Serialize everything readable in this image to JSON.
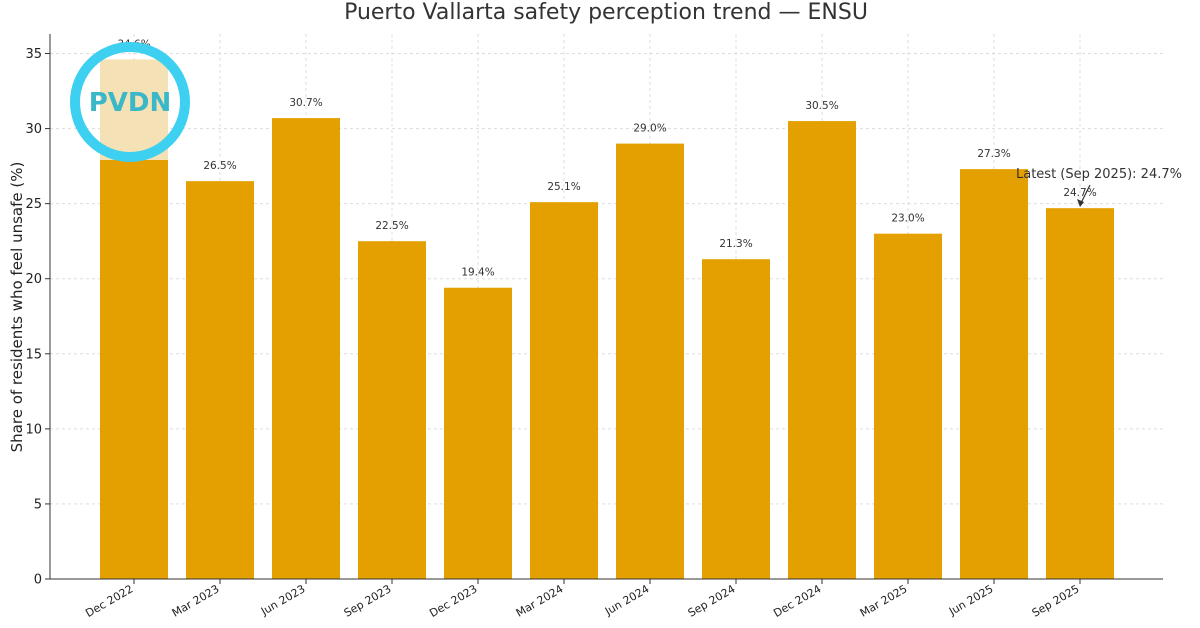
{
  "chart_data": {
    "type": "bar",
    "title": "Puerto Vallarta safety perception trend — ENSU",
    "xlabel": "",
    "ylabel": "Share of residents who feel unsafe (%)",
    "ylim": [
      0,
      36.3
    ],
    "yticks": [
      0,
      5,
      10,
      15,
      20,
      25,
      30,
      35
    ],
    "grid": true,
    "categories": [
      "Dec 2022",
      "Mar 2023",
      "Jun 2023",
      "Sep 2023",
      "Dec 2023",
      "Mar 2024",
      "Jun 2024",
      "Sep 2024",
      "Dec 2024",
      "Mar 2025",
      "Jun 2025",
      "Sep 2025"
    ],
    "values": [
      34.6,
      26.5,
      30.7,
      22.5,
      19.4,
      25.1,
      29.0,
      21.3,
      30.5,
      23.0,
      27.3,
      24.7
    ],
    "data_labels": [
      "34.6%",
      "26.5%",
      "30.7%",
      "22.5%",
      "19.4%",
      "25.1%",
      "29.0%",
      "21.3%",
      "30.5%",
      "23.0%",
      "27.3%",
      "24.7%"
    ],
    "bar_color": "#e3a000",
    "annotation": {
      "text": "Latest (Sep 2025): 24.7%",
      "category": "Sep 2025",
      "value": 24.7
    }
  },
  "logo": {
    "text": "PVDN",
    "ring_color": "#3dd0f0",
    "text_color": "#3ab8c8",
    "fill_color": "#f6e6c6"
  }
}
